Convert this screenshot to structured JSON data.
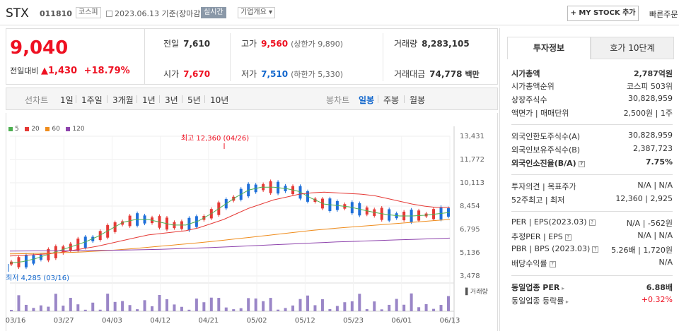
{
  "header": {
    "name": "STX",
    "code": "011810",
    "market": "코스피",
    "date": "2023.06.13 기준(장마감)",
    "live_label": "실시간",
    "company_info": "기업개요",
    "mystock_label": "+ MY STOCK 추가",
    "quick_order": "빠른주문"
  },
  "price": {
    "current": "9,040",
    "change_label": "전일대비",
    "change_amount": "1,430",
    "change_pct": "+18.79%"
  },
  "stats": {
    "prev_label": "전일",
    "prev": "7,610",
    "high_label": "고가",
    "high": "9,560",
    "upper_limit": "(상한가 9,890)",
    "volume_label": "거래량",
    "volume": "8,283,105",
    "open_label": "시가",
    "open": "7,670",
    "low_label": "저가",
    "low": "7,510",
    "lower_limit": "(하한가 5,330)",
    "amount_label": "거래대금",
    "amount": "74,778",
    "amount_unit": "백만"
  },
  "tabs": {
    "line": "선차트",
    "periods": [
      "1일",
      "1주일",
      "3개월",
      "1년",
      "3년",
      "5년",
      "10년"
    ],
    "candle": "봉차트",
    "candle_periods": [
      "일봉",
      "주봉",
      "월봉"
    ]
  },
  "chart_data": {
    "type": "line",
    "title": "",
    "legend": [
      "5",
      "20",
      "60",
      "120"
    ],
    "legend_colors": [
      "#4caf50",
      "#e53935",
      "#ef8c1c",
      "#8e44ad"
    ],
    "yticks": [
      "13,431",
      "11,772",
      "10,113",
      "8,454",
      "6,795",
      "5,136",
      "3,478"
    ],
    "ylim": [
      3478,
      13431
    ],
    "xticks": [
      "03/16",
      "03/27",
      "04/03",
      "04/12",
      "04/21",
      "05/02",
      "05/12",
      "05/23",
      "06/01",
      "06/13"
    ],
    "max_annotation": "최고 12,360 (04/26)",
    "min_annotation": "최저 4,285 (03/16)",
    "volume_label": "거래량",
    "series": [
      {
        "name": "5",
        "values": [
          4400,
          4500,
          4700,
          5000,
          5300,
          5600,
          5900,
          6300,
          6800,
          7300,
          7500,
          7500,
          7300,
          7100,
          7100,
          7400,
          7900,
          8500,
          9100,
          9600,
          9800,
          9800,
          9700,
          9500,
          9000,
          8600,
          8500,
          8400,
          8200,
          8000,
          7850,
          7750,
          7750,
          7800,
          7900,
          8000
        ]
      },
      {
        "name": "20",
        "values": [
          4900,
          4950,
          5000,
          5050,
          5150,
          5300,
          5450,
          5600,
          5800,
          6000,
          6200,
          6400,
          6500,
          6600,
          6700,
          6900,
          7200,
          7500,
          7900,
          8300,
          8600,
          8900,
          9100,
          9300,
          9400,
          9450,
          9400,
          9350,
          9300,
          9200,
          9000,
          8800,
          8600,
          8450,
          8350,
          8350
        ]
      },
      {
        "name": "60",
        "values": [
          5050,
          5060,
          5080,
          5100,
          5130,
          5160,
          5200,
          5250,
          5300,
          5370,
          5440,
          5520,
          5600,
          5680,
          5760,
          5840,
          5930,
          6020,
          6120,
          6220,
          6320,
          6420,
          6520,
          6620,
          6720,
          6800,
          6880,
          6950,
          7020,
          7090,
          7160,
          7230,
          7300,
          7370,
          7440,
          7500
        ]
      },
      {
        "name": "120",
        "values": [
          5250,
          5255,
          5260,
          5265,
          5270,
          5280,
          5290,
          5300,
          5310,
          5320,
          5340,
          5360,
          5380,
          5410,
          5440,
          5470,
          5500,
          5540,
          5580,
          5620,
          5660,
          5700,
          5740,
          5780,
          5820,
          5860,
          5900,
          5930,
          5960,
          5990,
          6020,
          6050,
          6080,
          6110,
          6140,
          6170
        ]
      }
    ]
  },
  "right_panel": {
    "tab_active": "투자정보",
    "tab_inactive": "호가 10단계",
    "rows": [
      {
        "l": "시가총액",
        "r": "2,787억원",
        "bold": true
      },
      {
        "l": "시가총액순위",
        "r": "코스피 503위"
      },
      {
        "l": "상장주식수",
        "r": "30,828,959"
      },
      {
        "l": "액면가 | 매매단위",
        "r": "2,500원 | 1주"
      },
      {
        "l": "외국인한도주식수(A)",
        "r": "30,828,959"
      },
      {
        "l": "외국인보유주식수(B)",
        "r": "2,387,723"
      },
      {
        "l": "외국인소진율(B/A)",
        "r": "7.75%",
        "bold": true
      },
      {
        "l": "투자의견 | 목표주가",
        "r": "N/A | N/A"
      },
      {
        "l": "52주최고 | 최저",
        "r": "12,360 | 2,925"
      },
      {
        "l": "PER | EPS(2023.03)",
        "r": "N/A | -562원"
      },
      {
        "l": "추정PER | EPS",
        "r": "N/A | N/A"
      },
      {
        "l": "PBR | BPS (2023.03)",
        "r": "5.26배 | 1,720원"
      },
      {
        "l": "배당수익률",
        "r": "N/A"
      },
      {
        "l": "동일업종 PER",
        "r": "6.88배",
        "bold": true
      },
      {
        "l": "동일업종 등락률",
        "r": "+0.32%",
        "red": true
      }
    ]
  }
}
